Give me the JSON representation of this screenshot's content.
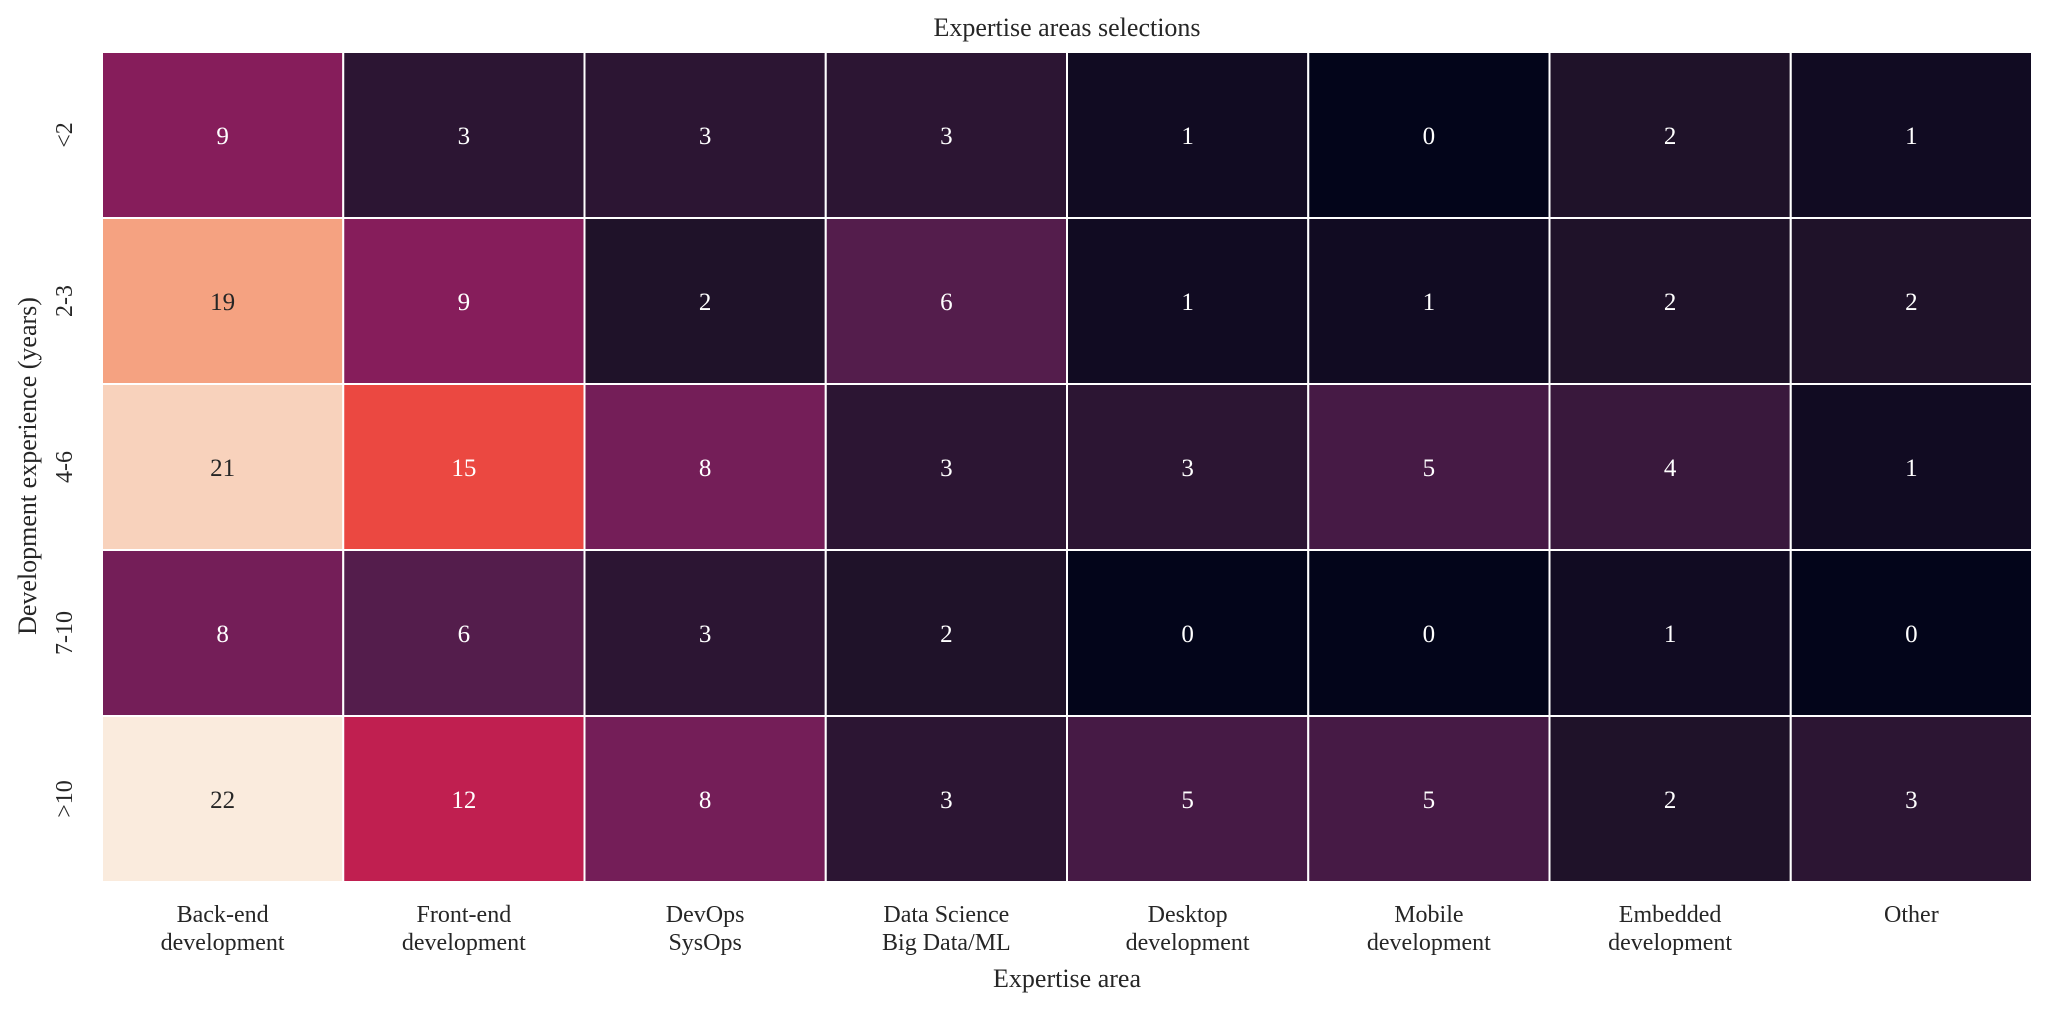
{
  "chart_data": {
    "type": "heatmap",
    "title": "Expertise areas selections",
    "xlabel": "Expertise area",
    "ylabel": "Development experience (years)",
    "x_categories": [
      [
        "Back-end",
        "development"
      ],
      [
        "Front-end",
        "development"
      ],
      [
        "DevOps",
        "SysOps"
      ],
      [
        "Data Science",
        "Big Data/ML"
      ],
      [
        "Desktop",
        "development"
      ],
      [
        "Mobile",
        "development"
      ],
      [
        "Embedded",
        "development"
      ],
      [
        "Other"
      ]
    ],
    "y_categories": [
      "<2",
      "2-3",
      "4-6",
      "7-10",
      ">10"
    ],
    "values": [
      [
        9,
        3,
        3,
        3,
        1,
        0,
        2,
        1
      ],
      [
        19,
        9,
        2,
        6,
        1,
        1,
        2,
        2
      ],
      [
        21,
        15,
        8,
        3,
        3,
        5,
        4,
        1
      ],
      [
        8,
        6,
        3,
        2,
        0,
        0,
        1,
        0
      ],
      [
        22,
        12,
        8,
        3,
        5,
        5,
        2,
        3
      ]
    ],
    "colormap": "rocket",
    "value_range": [
      0,
      22
    ],
    "annotations": true,
    "colorbar": false,
    "cell_border_color": "#ffffff"
  }
}
